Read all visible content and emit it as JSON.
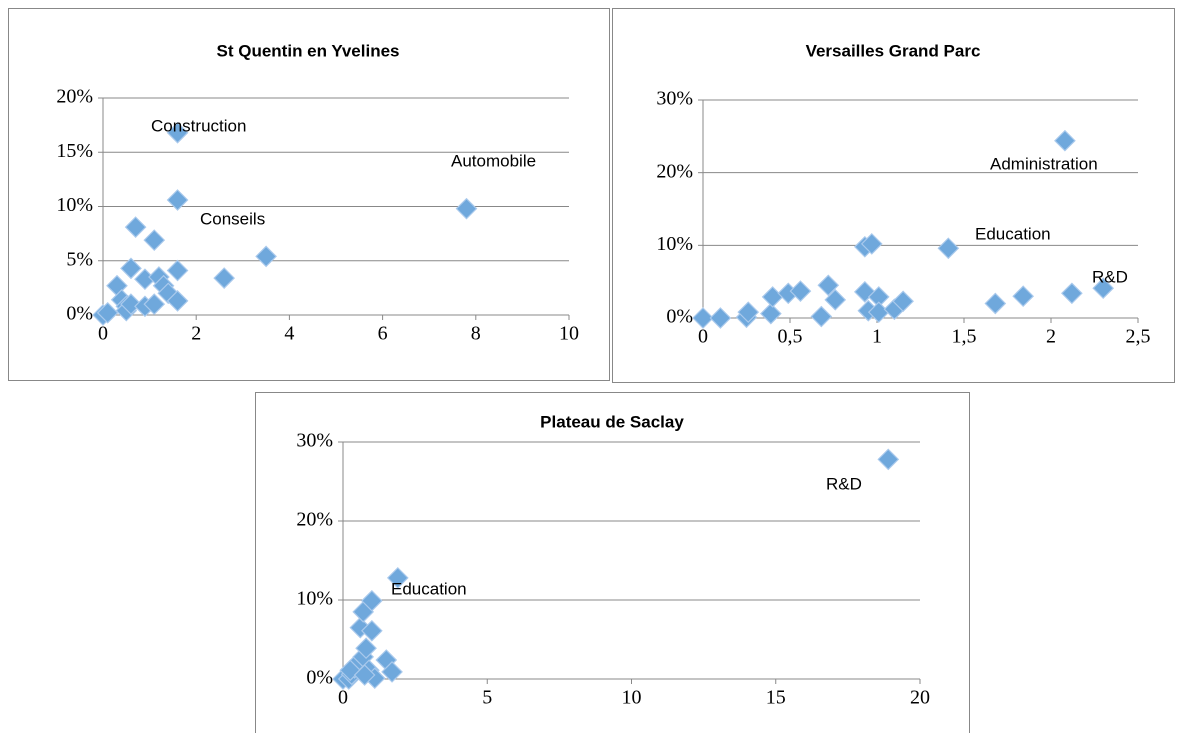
{
  "chart_data": [
    {
      "type": "scatter",
      "title": "St Quentin en Yvelines",
      "color": "#6fa8dc",
      "grid": true,
      "x": [
        0,
        0.1,
        0.3,
        0.4,
        0.5,
        0.5,
        0.6,
        0.6,
        0.7,
        0.9,
        0.9,
        1.1,
        1.1,
        1.2,
        1.3,
        1.4,
        1.6,
        1.6,
        1.6,
        1.6,
        2.6,
        3.5,
        7.8
      ],
      "series": [
        {
          "values": [
            0,
            0.2,
            2.7,
            1.4,
            0.8,
            0.4,
            4.3,
            1.0,
            8.1,
            3.3,
            0.8,
            6.9,
            1.0,
            3.5,
            2.7,
            2.0,
            16.8,
            10.6,
            4.1,
            1.3,
            3.4,
            5.4,
            9.8
          ]
        }
      ],
      "xlim": [
        0,
        10
      ],
      "xticks": [
        0,
        2,
        4,
        6,
        8,
        10
      ],
      "ylim": [
        0,
        20
      ],
      "yticks": [
        {
          "value": 0,
          "label": "0%"
        },
        {
          "value": 5,
          "label": "5%"
        },
        {
          "value": 10,
          "label": "10%"
        },
        {
          "value": 15,
          "label": "15%"
        },
        {
          "value": 20,
          "label": "20%"
        }
      ],
      "annotations": [
        "Construction",
        "Automobile",
        "Conseils"
      ]
    },
    {
      "type": "scatter",
      "title": "Versailles Grand Parc",
      "color": "#6fa8dc",
      "grid": true,
      "x": [
        0,
        0.1,
        0.25,
        0.26,
        0.39,
        0.4,
        0.49,
        0.56,
        0.68,
        0.72,
        0.76,
        0.93,
        0.97,
        0.93,
        0.95,
        1.01,
        1.01,
        1.1,
        1.15,
        1.41,
        1.68,
        1.84,
        2.08,
        2.12,
        2.3
      ],
      "series": [
        {
          "values": [
            0,
            0,
            0.1,
            0.8,
            0.6,
            2.9,
            3.4,
            3.7,
            0.2,
            4.5,
            2.5,
            9.8,
            10.2,
            3.6,
            1,
            2.9,
            0.8,
            1.2,
            2.3,
            9.6,
            2,
            3,
            24.4,
            3.4,
            4.1
          ]
        }
      ],
      "xlim": [
        0,
        2.5
      ],
      "xticks": [
        0,
        {
          "value": 0.5,
          "label": "0,5"
        },
        1,
        {
          "value": 1.5,
          "label": "1,5"
        },
        2,
        {
          "value": 2.5,
          "label": "2,5"
        }
      ],
      "ylim": [
        0,
        30
      ],
      "yticks": [
        {
          "value": 0,
          "label": "0%"
        },
        {
          "value": 10,
          "label": "10%"
        },
        {
          "value": 20,
          "label": "20%"
        },
        {
          "value": 30,
          "label": "30%"
        }
      ],
      "annotations": [
        "Administration",
        "Education",
        "R&D"
      ]
    },
    {
      "type": "scatter",
      "title": "Plateau de Saclay",
      "color": "#6fa8dc",
      "grid": true,
      "x": [
        0,
        0.2,
        0.3,
        0.4,
        0.5,
        0.7,
        0.6,
        0.7,
        1.0,
        1.0,
        0.8,
        0.9,
        1.1,
        1.5,
        1.7,
        1.9,
        18.9,
        0.25,
        0.75
      ],
      "series": [
        {
          "values": [
            0,
            0,
            0.6,
            1.4,
            2.0,
            2.8,
            6.5,
            8.5,
            9.9,
            6.1,
            3.9,
            1.1,
            0.1,
            2.4,
            0.9,
            12.8,
            27.8,
            1.1,
            0.5
          ]
        }
      ],
      "xlim": [
        0,
        20
      ],
      "xticks": [
        0,
        5,
        10,
        15,
        20
      ],
      "ylim": [
        0,
        30
      ],
      "yticks": [
        {
          "value": 0,
          "label": "0%"
        },
        {
          "value": 10,
          "label": "10%"
        },
        {
          "value": 20,
          "label": "20%"
        },
        {
          "value": 30,
          "label": "30%"
        }
      ],
      "annotations": [
        "R&D",
        "Education"
      ]
    }
  ]
}
